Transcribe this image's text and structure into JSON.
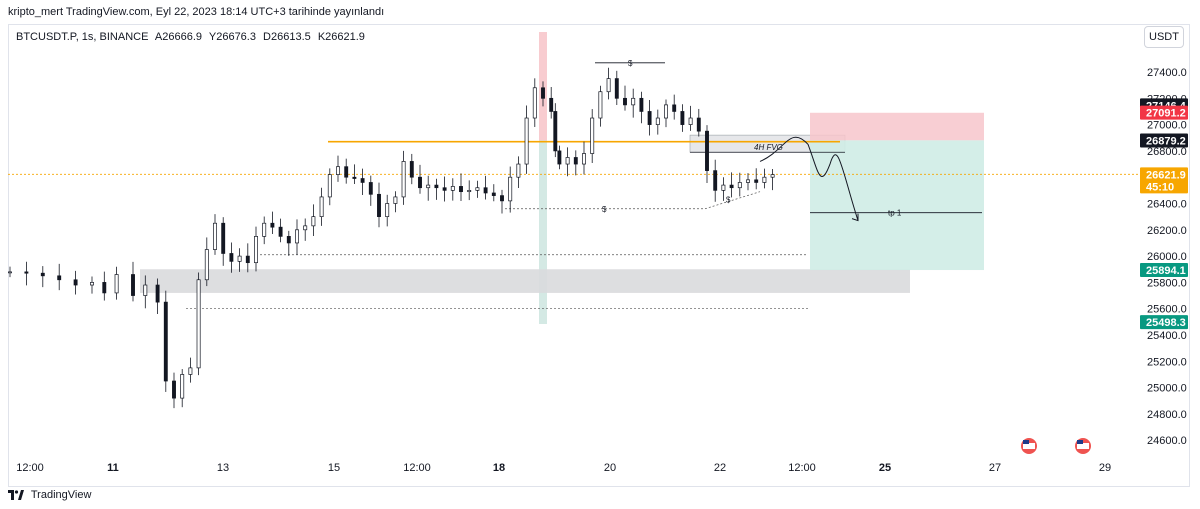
{
  "header": {
    "publish_line": "kripto_mert TradingView.com, Eyl 22, 2023 18:14 UTC+3 tarihinde yayınlandı"
  },
  "symbol": {
    "name": "BTCUSDT.P, 1s, BINANCE",
    "open": "A26666.9",
    "high": "Y26676.3",
    "low": "D26613.5",
    "close": "K26621.9"
  },
  "currency_button": "USDT",
  "footer": {
    "brand": "TradingView"
  },
  "colors": {
    "up": "#26a69a",
    "down": "#ef5350",
    "candle": "#131722",
    "orange": "#f7a600",
    "pink_zone": "#f7c6cb",
    "green_zone": "#cfece6",
    "gray_zone": "#d9dadd"
  },
  "chart_data": {
    "type": "candlestick",
    "symbol": "BTCUSDT.P",
    "interval": "1s",
    "ylim": [
      24450,
      27700
    ],
    "y_ticks": [
      "27400.0",
      "27200.0",
      "27000.0",
      "26800.0",
      "26600.0",
      "26400.0",
      "26200.0",
      "26000.0",
      "25800.0",
      "25600.0",
      "25400.0",
      "25200.0",
      "25000.0",
      "24800.0",
      "24600.0"
    ],
    "x_ticks": [
      "12:00",
      "11",
      "13",
      "15",
      "12:00",
      "18",
      "20",
      "22",
      "12:00",
      "25",
      "27",
      "29"
    ],
    "price_badges": [
      {
        "label": "27146.4",
        "value": 27146.4,
        "style": "black"
      },
      {
        "label": "27091.2",
        "value": 27091.2,
        "style": "red"
      },
      {
        "label": "26879.2",
        "value": 26879.2,
        "style": "black"
      },
      {
        "label": "26621.9",
        "value": 26621.9,
        "style": "orange",
        "sub": "45:10"
      },
      {
        "label": "25894.1",
        "value": 25894.1,
        "style": "green"
      },
      {
        "label": "25498.3",
        "value": 25498.3,
        "style": "green"
      }
    ],
    "key_levels": {
      "orange_line": 26870,
      "fvg_top": 26920,
      "fvg_bottom": 26790,
      "gray_zone_top": 25900,
      "gray_zone_bottom": 25720,
      "dotted_level_1": 26010,
      "dotted_level_2": 25600,
      "liquidity_low": 26360,
      "liquidity_high": 27470,
      "tp1": 26330,
      "stop_zone_top": 27090,
      "entry": 26880,
      "target_zone_bottom": 25894
    },
    "annotations": [
      "$",
      "$",
      "$",
      "4H FVG",
      "tp 1"
    ],
    "price_path": [
      {
        "x": 0,
        "y": 25880
      },
      {
        "x": 4,
        "y": 25870
      },
      {
        "x": 8,
        "y": 25850
      },
      {
        "x": 12,
        "y": 25820
      },
      {
        "x": 16,
        "y": 25780
      },
      {
        "x": 20,
        "y": 25800
      },
      {
        "x": 23,
        "y": 25720
      },
      {
        "x": 26,
        "y": 25860
      },
      {
        "x": 30,
        "y": 25700
      },
      {
        "x": 33,
        "y": 25780
      },
      {
        "x": 36,
        "y": 25650
      },
      {
        "x": 38,
        "y": 25050
      },
      {
        "x": 40,
        "y": 24920
      },
      {
        "x": 42,
        "y": 25100
      },
      {
        "x": 44,
        "y": 25150
      },
      {
        "x": 46,
        "y": 25820
      },
      {
        "x": 48,
        "y": 26050
      },
      {
        "x": 50,
        "y": 26250
      },
      {
        "x": 52,
        "y": 26020
      },
      {
        "x": 54,
        "y": 25960
      },
      {
        "x": 56,
        "y": 26000
      },
      {
        "x": 58,
        "y": 25950
      },
      {
        "x": 60,
        "y": 26150
      },
      {
        "x": 62,
        "y": 26250
      },
      {
        "x": 64,
        "y": 26220
      },
      {
        "x": 66,
        "y": 26150
      },
      {
        "x": 68,
        "y": 26100
      },
      {
        "x": 70,
        "y": 26200
      },
      {
        "x": 72,
        "y": 26230
      },
      {
        "x": 74,
        "y": 26300
      },
      {
        "x": 76,
        "y": 26450
      },
      {
        "x": 78,
        "y": 26620
      },
      {
        "x": 80,
        "y": 26680
      },
      {
        "x": 82,
        "y": 26600
      },
      {
        "x": 84,
        "y": 26590
      },
      {
        "x": 86,
        "y": 26560
      },
      {
        "x": 88,
        "y": 26470
      },
      {
        "x": 90,
        "y": 26300
      },
      {
        "x": 92,
        "y": 26400
      },
      {
        "x": 94,
        "y": 26450
      },
      {
        "x": 96,
        "y": 26720
      },
      {
        "x": 98,
        "y": 26600
      },
      {
        "x": 100,
        "y": 26520
      },
      {
        "x": 102,
        "y": 26540
      },
      {
        "x": 104,
        "y": 26520
      },
      {
        "x": 106,
        "y": 26500
      },
      {
        "x": 108,
        "y": 26530
      },
      {
        "x": 110,
        "y": 26490
      },
      {
        "x": 112,
        "y": 26500
      },
      {
        "x": 114,
        "y": 26520
      },
      {
        "x": 116,
        "y": 26480
      },
      {
        "x": 118,
        "y": 26460
      },
      {
        "x": 120,
        "y": 26420
      },
      {
        "x": 122,
        "y": 26600
      },
      {
        "x": 124,
        "y": 26700
      },
      {
        "x": 126,
        "y": 27050
      },
      {
        "x": 128,
        "y": 27280
      },
      {
        "x": 130,
        "y": 27200
      },
      {
        "x": 132,
        "y": 27100
      },
      {
        "x": 133,
        "y": 26800
      },
      {
        "x": 134,
        "y": 26700
      },
      {
        "x": 136,
        "y": 26750
      },
      {
        "x": 138,
        "y": 26700
      },
      {
        "x": 140,
        "y": 26780
      },
      {
        "x": 142,
        "y": 27050
      },
      {
        "x": 144,
        "y": 27250
      },
      {
        "x": 146,
        "y": 27350
      },
      {
        "x": 148,
        "y": 27200
      },
      {
        "x": 150,
        "y": 27150
      },
      {
        "x": 152,
        "y": 27200
      },
      {
        "x": 154,
        "y": 27100
      },
      {
        "x": 156,
        "y": 27000
      },
      {
        "x": 158,
        "y": 27050
      },
      {
        "x": 160,
        "y": 27150
      },
      {
        "x": 162,
        "y": 27100
      },
      {
        "x": 164,
        "y": 27000
      },
      {
        "x": 166,
        "y": 27050
      },
      {
        "x": 168,
        "y": 26950
      },
      {
        "x": 170,
        "y": 26650
      },
      {
        "x": 172,
        "y": 26500
      },
      {
        "x": 174,
        "y": 26540
      },
      {
        "x": 176,
        "y": 26520
      },
      {
        "x": 178,
        "y": 26560
      },
      {
        "x": 180,
        "y": 26580
      },
      {
        "x": 182,
        "y": 26560
      },
      {
        "x": 184,
        "y": 26600
      },
      {
        "x": 186,
        "y": 26620
      }
    ]
  }
}
